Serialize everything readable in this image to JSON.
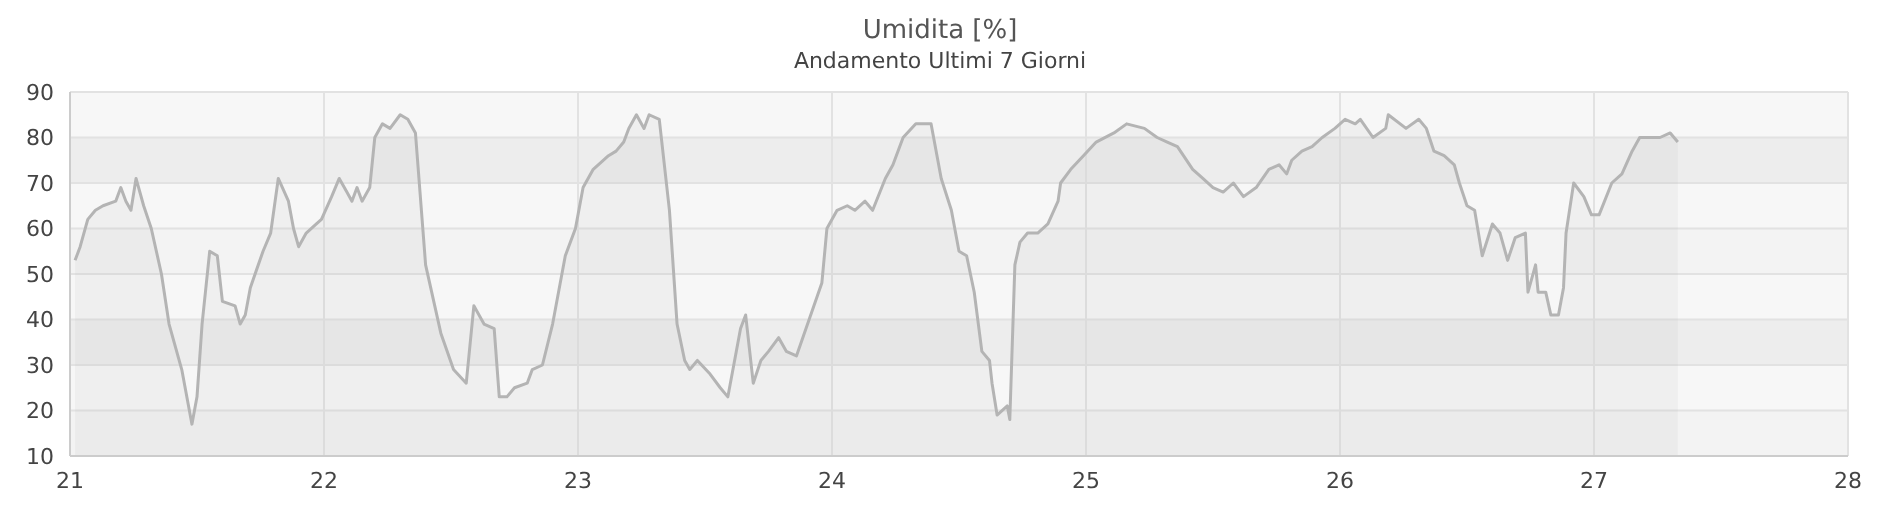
{
  "chart_data": {
    "type": "area",
    "title": "Umidita [%]",
    "subtitle": "Andamento Ultimi 7 Giorni",
    "x": [
      21.02,
      21.04,
      21.07,
      21.1,
      21.13,
      21.18,
      21.2,
      21.22,
      21.24,
      21.26,
      21.29,
      21.32,
      21.36,
      21.39,
      21.44,
      21.48,
      21.5,
      21.52,
      21.55,
      21.58,
      21.6,
      21.65,
      21.67,
      21.69,
      21.71,
      21.76,
      21.79,
      21.82,
      21.86,
      21.88,
      21.9,
      21.93,
      21.97,
      21.99,
      22.03,
      22.06,
      22.09,
      22.11,
      22.13,
      22.15,
      22.18,
      22.2,
      22.23,
      22.26,
      22.3,
      22.33,
      22.36,
      22.4,
      22.46,
      22.51,
      22.56,
      22.59,
      22.63,
      22.67,
      22.69,
      22.72,
      22.75,
      22.8,
      22.82,
      22.86,
      22.9,
      22.95,
      22.99,
      23.02,
      23.06,
      23.12,
      23.15,
      23.18,
      23.2,
      23.23,
      23.26,
      23.28,
      23.32,
      23.36,
      23.39,
      23.42,
      23.44,
      23.47,
      23.52,
      23.56,
      23.59,
      23.64,
      23.66,
      23.69,
      23.72,
      23.75,
      23.79,
      23.82,
      23.86,
      23.91,
      23.96,
      23.98,
      24.02,
      24.06,
      24.09,
      24.13,
      24.16,
      24.21,
      24.24,
      24.28,
      24.33,
      24.37,
      24.39,
      24.4,
      24.43,
      24.47,
      24.5,
      24.53,
      24.56,
      24.59,
      24.62,
      24.63,
      24.65,
      24.69,
      24.7,
      24.72,
      24.74,
      24.77,
      24.81,
      24.85,
      24.89,
      24.9,
      24.94,
      24.99,
      25.04,
      25.11,
      25.16,
      25.23,
      25.28,
      25.32,
      25.36,
      25.42,
      25.46,
      25.5,
      25.54,
      25.58,
      25.62,
      25.67,
      25.72,
      25.76,
      25.79,
      25.81,
      25.85,
      25.89,
      25.93,
      25.98,
      26.02,
      26.06,
      26.08,
      26.13,
      26.18,
      26.19,
      26.26,
      26.31,
      26.34,
      26.37,
      26.41,
      26.45,
      26.47,
      26.5,
      26.53,
      26.56,
      26.6,
      26.63,
      26.66,
      26.69,
      26.73,
      26.74,
      26.77,
      26.78,
      26.81,
      26.83,
      26.86,
      26.88,
      26.89,
      26.92,
      26.96,
      26.99,
      27.02,
      27.07,
      27.11,
      27.15,
      27.18,
      27.23,
      27.26,
      27.3,
      27.33
    ],
    "series": [
      {
        "color": "#b4b4b4",
        "values": [
          53,
          56,
          62,
          64,
          65,
          66,
          69,
          66,
          64,
          71,
          65,
          60,
          50,
          39,
          29,
          17,
          23,
          39,
          55,
          54,
          44,
          43,
          39,
          41,
          47,
          55,
          59,
          71,
          66,
          60,
          56,
          59,
          61,
          62,
          67,
          71,
          68,
          66,
          69,
          66,
          69,
          80,
          83,
          82,
          85,
          84,
          81,
          52,
          37,
          29,
          26,
          43,
          39,
          38,
          23,
          23,
          25,
          26,
          29,
          30,
          39,
          54,
          60,
          69,
          73,
          76,
          77,
          79,
          82,
          85,
          82,
          85,
          84,
          64,
          39,
          31,
          29,
          31,
          28,
          25,
          23,
          38,
          41,
          26,
          31,
          33,
          36,
          33,
          32,
          40,
          48,
          60,
          64,
          65,
          64,
          66,
          64,
          71,
          74,
          80,
          83,
          83,
          83,
          80,
          71,
          64,
          55,
          54,
          46,
          33,
          31,
          26,
          19,
          21,
          18,
          52,
          57,
          59,
          59,
          61,
          66,
          70,
          73,
          76,
          79,
          81,
          83,
          82,
          80,
          79,
          78,
          73,
          71,
          69,
          68,
          70,
          67,
          69,
          73,
          74,
          72,
          75,
          77,
          78,
          80,
          82,
          84,
          83,
          84,
          80,
          82,
          85,
          82,
          84,
          82,
          77,
          76,
          74,
          70,
          65,
          64,
          54,
          61,
          59,
          53,
          58,
          59,
          46,
          52,
          46,
          46,
          41,
          41,
          47,
          59,
          70,
          67,
          63,
          63,
          70,
          72,
          77,
          80,
          80,
          80,
          81,
          79
        ]
      }
    ],
    "xlim": [
      21,
      28
    ],
    "xticks": [
      21,
      22,
      23,
      24,
      25,
      26,
      27,
      28
    ],
    "ylim": [
      10,
      90
    ],
    "yticks": [
      10,
      20,
      30,
      40,
      50,
      60,
      70,
      80,
      90
    ],
    "grid": true
  }
}
